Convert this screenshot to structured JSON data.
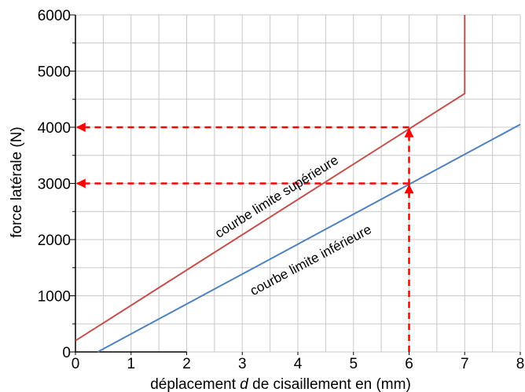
{
  "chart_data": {
    "type": "line",
    "xlabel_parts": [
      "déplacement ",
      "d",
      " de cisaillement en (mm)"
    ],
    "ylabel": "force latérale (N)",
    "xlim": [
      0,
      8
    ],
    "ylim": [
      0,
      6000
    ],
    "x_ticks": [
      "0",
      "1",
      "2",
      "3",
      "4",
      "5",
      "6",
      "7",
      "8"
    ],
    "y_ticks": [
      "0",
      "1000",
      "2000",
      "3000",
      "4000",
      "5000",
      "6000"
    ],
    "grid": true,
    "series": [
      {
        "name": "courbe limite supérieure",
        "color": "#c0504d",
        "points": [
          [
            0,
            200
          ],
          [
            7,
            4600
          ],
          [
            7,
            6000
          ]
        ]
      },
      {
        "name": "courbe limite inférieure",
        "color": "#4f81bd",
        "points": [
          [
            0.4,
            0
          ],
          [
            8,
            4050
          ]
        ]
      }
    ],
    "annotations": {
      "color": "#ff0000",
      "style": "dashed arrows",
      "vertical_x": 6,
      "reads": [
        4000,
        3000
      ]
    }
  }
}
